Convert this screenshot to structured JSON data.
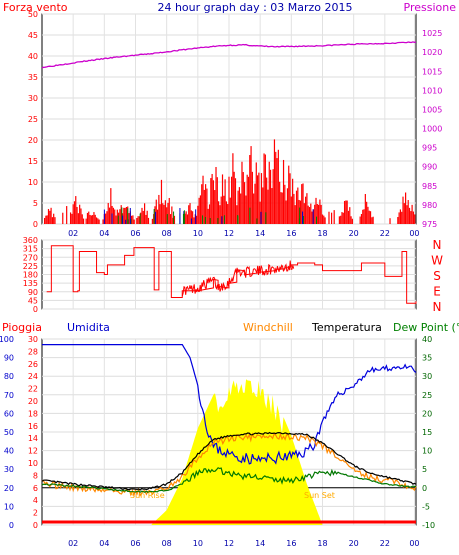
{
  "header": {
    "left_label": "Forza vento",
    "title": "24 hour graph day : 03 Marzo 2015",
    "right_label": "Pressione"
  },
  "colors": {
    "wind": "#ff0000",
    "gust_alt": "#008000",
    "gust_blue": "#0000cc",
    "pressure": "#cc00cc",
    "humidity": "#0000dd",
    "temperature": "#000000",
    "windchill": "#ff8800",
    "dewpoint": "#007700",
    "sun": "#ffff00",
    "rain": "#ff0000",
    "axis_left": "#ff0000",
    "axis_right_pressure": "#cc00cc",
    "axis_blue": "#0000cc",
    "axis_dark": "#006600"
  },
  "chart_data": [
    {
      "type": "line",
      "name": "wind_pressure",
      "x_ticks": [
        "02",
        "04",
        "06",
        "08",
        "10",
        "12",
        "14",
        "16",
        "18",
        "20",
        "22",
        "00"
      ],
      "left_axis": {
        "label": "Forza vento",
        "ticks": [
          0,
          5,
          10,
          15,
          20,
          25,
          30,
          35,
          40,
          45,
          50
        ],
        "ylim": [
          0,
          50
        ]
      },
      "right_axis": {
        "label": "Pressione",
        "ticks": [
          975,
          980,
          985,
          990,
          995,
          1000,
          1005,
          1010,
          1015,
          1020,
          1025
        ],
        "ylim": [
          975,
          1030
        ]
      },
      "series": [
        {
          "name": "Pressione",
          "x": [
            0,
            1,
            2,
            3,
            4,
            5,
            6,
            7,
            8,
            9,
            10,
            11,
            12,
            13,
            14,
            15,
            16,
            17,
            18,
            19,
            20,
            21,
            22,
            23,
            24
          ],
          "values": [
            1016,
            1016.6,
            1017.2,
            1017.8,
            1018.3,
            1018.8,
            1019.2,
            1019.6,
            1020.1,
            1020.6,
            1021.1,
            1021.5,
            1021.8,
            1021.9,
            1021.6,
            1021.4,
            1021.5,
            1021.6,
            1021.7,
            1021.9,
            1022.1,
            1022.2,
            1022.3,
            1022.5,
            1022.6
          ]
        },
        {
          "name": "Forza vento",
          "x": [
            0.5,
            2.2,
            3.2,
            4.4,
            5.1,
            5.5,
            6.5,
            7.6,
            8.1,
            9.5,
            10.4,
            11.0,
            11.7,
            12.2,
            12.9,
            13.4,
            13.8,
            14.3,
            14.6,
            14.9,
            15.2,
            15.5,
            15.8,
            16.1,
            16.6,
            17.1,
            17.7,
            19.5,
            20.8,
            23.3,
            23.6
          ],
          "values": [
            5,
            8,
            5,
            9,
            7,
            6,
            6,
            12,
            7,
            6,
            14,
            20,
            15,
            19,
            17,
            22,
            18,
            20,
            24,
            26,
            22,
            19,
            17,
            14,
            13,
            10,
            9,
            7,
            8,
            9,
            8
          ]
        }
      ]
    },
    {
      "type": "line",
      "name": "wind_direction",
      "axis_right_labels": [
        "N",
        "W",
        "S",
        "E",
        "N"
      ],
      "left_axis": {
        "ticks": [
          0,
          45,
          90,
          135,
          180,
          225,
          270,
          315,
          360
        ],
        "ylim": [
          0,
          360
        ]
      },
      "series": [
        {
          "name": "Direzione",
          "x": [
            0.3,
            0.6,
            1.5,
            2.0,
            2.3,
            2.4,
            3.3,
            3.5,
            4.0,
            4.2,
            5.1,
            5.3,
            5.9,
            6.0,
            7.2,
            7.5,
            8.0,
            8.3,
            9.0,
            10.0,
            11.0,
            11.3,
            12.0,
            12.5,
            13.0,
            14.0,
            15.0,
            15.6,
            16.0,
            16.4,
            17.5,
            18.0,
            20.0,
            20.5,
            21.8,
            22.0,
            22.5,
            23.1,
            23.4,
            24.0
          ],
          "values": [
            90,
            330,
            330,
            90,
            95,
            300,
            300,
            190,
            180,
            230,
            230,
            280,
            320,
            320,
            100,
            300,
            300,
            60,
            95,
            110,
            150,
            110,
            140,
            200,
            190,
            200,
            210,
            220,
            230,
            240,
            230,
            200,
            200,
            240,
            240,
            170,
            170,
            300,
            30,
            40
          ]
        }
      ]
    },
    {
      "type": "line",
      "name": "temperature_humidity",
      "legend": [
        "Pioggia",
        "Umidita",
        "Windchill",
        "Temperatura",
        "Dew Point (°C"
      ],
      "left_axis_humidity": {
        "ticks": [
          0,
          10,
          20,
          30,
          40,
          50,
          60,
          70,
          80,
          90,
          100
        ],
        "ylim": [
          0,
          100
        ]
      },
      "left_axis_rain": {
        "ticks": [
          0,
          2,
          4,
          6,
          8,
          10,
          12,
          14,
          16,
          18,
          20,
          22,
          24,
          26,
          28,
          30
        ],
        "ylim": [
          0,
          30
        ]
      },
      "right_axis_temp": {
        "ticks": [
          -10,
          -5,
          0,
          5,
          10,
          15,
          20,
          25,
          30,
          35,
          40
        ],
        "ylim": [
          -10,
          40
        ]
      },
      "sunrise_label": "Sun Rise",
      "sunset_label": "Sun Set",
      "series": [
        {
          "name": "Umidita",
          "x": [
            0,
            4,
            8,
            9,
            9.5,
            10,
            10.5,
            11,
            12,
            13,
            14,
            15,
            16,
            16.5,
            17,
            17.5,
            18,
            19,
            20,
            21,
            22,
            23,
            23.8,
            24
          ],
          "values": [
            97,
            97,
            97,
            97,
            90,
            75,
            55,
            42,
            38,
            36,
            35,
            36,
            37,
            38,
            40,
            44,
            56,
            70,
            75,
            83,
            84,
            85,
            84,
            82
          ]
        },
        {
          "name": "Temperatura",
          "x": [
            0,
            2,
            4,
            6,
            7,
            8,
            9,
            10,
            11,
            12,
            13,
            14,
            15,
            16,
            17,
            18,
            19,
            20,
            21,
            22,
            23,
            24
          ],
          "values": [
            2,
            1,
            0.2,
            -0.5,
            -0.2,
            1,
            4,
            9,
            13,
            14,
            14.5,
            14.5,
            14.8,
            14.6,
            14.3,
            12,
            9,
            6,
            4,
            3,
            2,
            1
          ]
        },
        {
          "name": "Dew Point",
          "x": [
            0,
            2,
            4,
            6,
            7,
            8,
            9,
            10,
            11,
            12,
            13,
            14,
            15,
            16,
            17,
            18,
            19,
            20,
            21,
            22,
            23,
            24
          ],
          "values": [
            1,
            0.5,
            -0.3,
            -1,
            -1,
            -0.8,
            1,
            4,
            5,
            4,
            3,
            3,
            2,
            2,
            3,
            4,
            4,
            3,
            2,
            1,
            0.5,
            0.2
          ]
        },
        {
          "name": "Sun",
          "x": [
            7,
            8,
            9,
            10,
            11,
            12,
            13,
            14,
            15,
            16,
            17,
            18
          ],
          "values": [
            0,
            8,
            25,
            52,
            70,
            78,
            80,
            78,
            68,
            48,
            22,
            0
          ]
        }
      ]
    }
  ]
}
